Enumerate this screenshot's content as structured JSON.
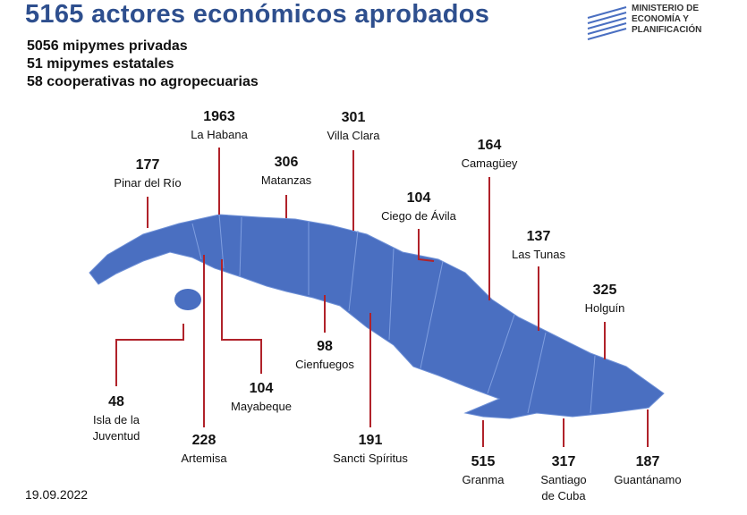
{
  "header": {
    "title": "5165 actores económicos aprobados",
    "lines": [
      "5056 mipymes privadas",
      "51 mipymes estatales",
      "58 cooperativas no agropecuarias"
    ]
  },
  "logo": {
    "lines": [
      "MINISTERIO DE",
      "ECONOMÍA Y",
      "PLANIFICACIÓN"
    ]
  },
  "provinces": [
    {
      "name": [
        "Pinar del Río"
      ],
      "value": 177
    },
    {
      "name": [
        "La Habana"
      ],
      "value": 1963
    },
    {
      "name": [
        "Matanzas"
      ],
      "value": 306
    },
    {
      "name": [
        "Villa Clara"
      ],
      "value": 301
    },
    {
      "name": [
        "Ciego de Ávila"
      ],
      "value": 104
    },
    {
      "name": [
        "Camagüey"
      ],
      "value": 164
    },
    {
      "name": [
        "Las Tunas"
      ],
      "value": 137
    },
    {
      "name": [
        "Holguín"
      ],
      "value": 325
    },
    {
      "name": [
        "Guantánamo"
      ],
      "value": 187
    },
    {
      "name": [
        "Santiago",
        "de Cuba"
      ],
      "value": 317
    },
    {
      "name": [
        "Granma"
      ],
      "value": 515
    },
    {
      "name": [
        "Sancti Spíritus"
      ],
      "value": 191
    },
    {
      "name": [
        "Cienfuegos"
      ],
      "value": 98
    },
    {
      "name": [
        "Mayabeque"
      ],
      "value": 104
    },
    {
      "name": [
        "Artemisa"
      ],
      "value": 228
    },
    {
      "name": [
        "Isla de la",
        "Juventud"
      ],
      "value": 48
    }
  ],
  "date": "19.09.2022"
}
